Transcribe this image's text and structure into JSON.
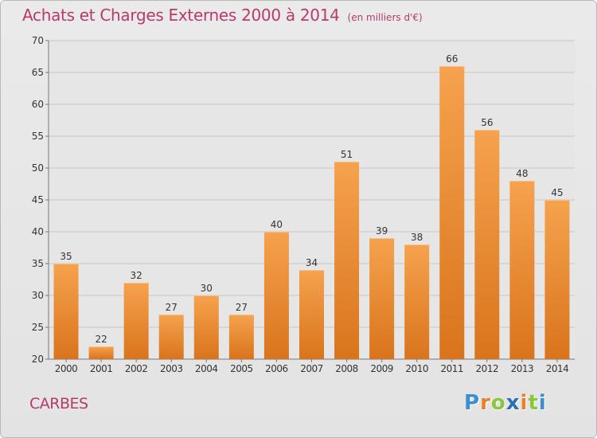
{
  "header": {
    "title": "Achats et Charges Externes 2000 à 2014",
    "unit": "(en milliers d'€)"
  },
  "footer": {
    "town": "CARBES",
    "brand": "Proxiti"
  },
  "colors": {
    "title": "#b83a6c",
    "bar_light": "#f6a24e",
    "bar_dark": "#d9741c",
    "grid": "#c8c8c8",
    "axis_text": "#333333"
  },
  "chart_data": {
    "type": "bar",
    "title": "Achats et Charges Externes 2000 à 2014",
    "subtitle": "(en milliers d'€)",
    "xlabel": "",
    "ylabel": "",
    "categories": [
      "2000",
      "2001",
      "2002",
      "2003",
      "2004",
      "2005",
      "2006",
      "2007",
      "2008",
      "2009",
      "2010",
      "2011",
      "2012",
      "2013",
      "2014"
    ],
    "values": [
      35,
      22,
      32,
      27,
      30,
      27,
      40,
      34,
      51,
      39,
      38,
      66,
      56,
      48,
      45
    ],
    "ylim": [
      20,
      70
    ],
    "yticks": [
      20,
      25,
      30,
      35,
      40,
      45,
      50,
      55,
      60,
      65,
      70
    ],
    "grid": true,
    "data_labels": true,
    "legend": "none"
  }
}
